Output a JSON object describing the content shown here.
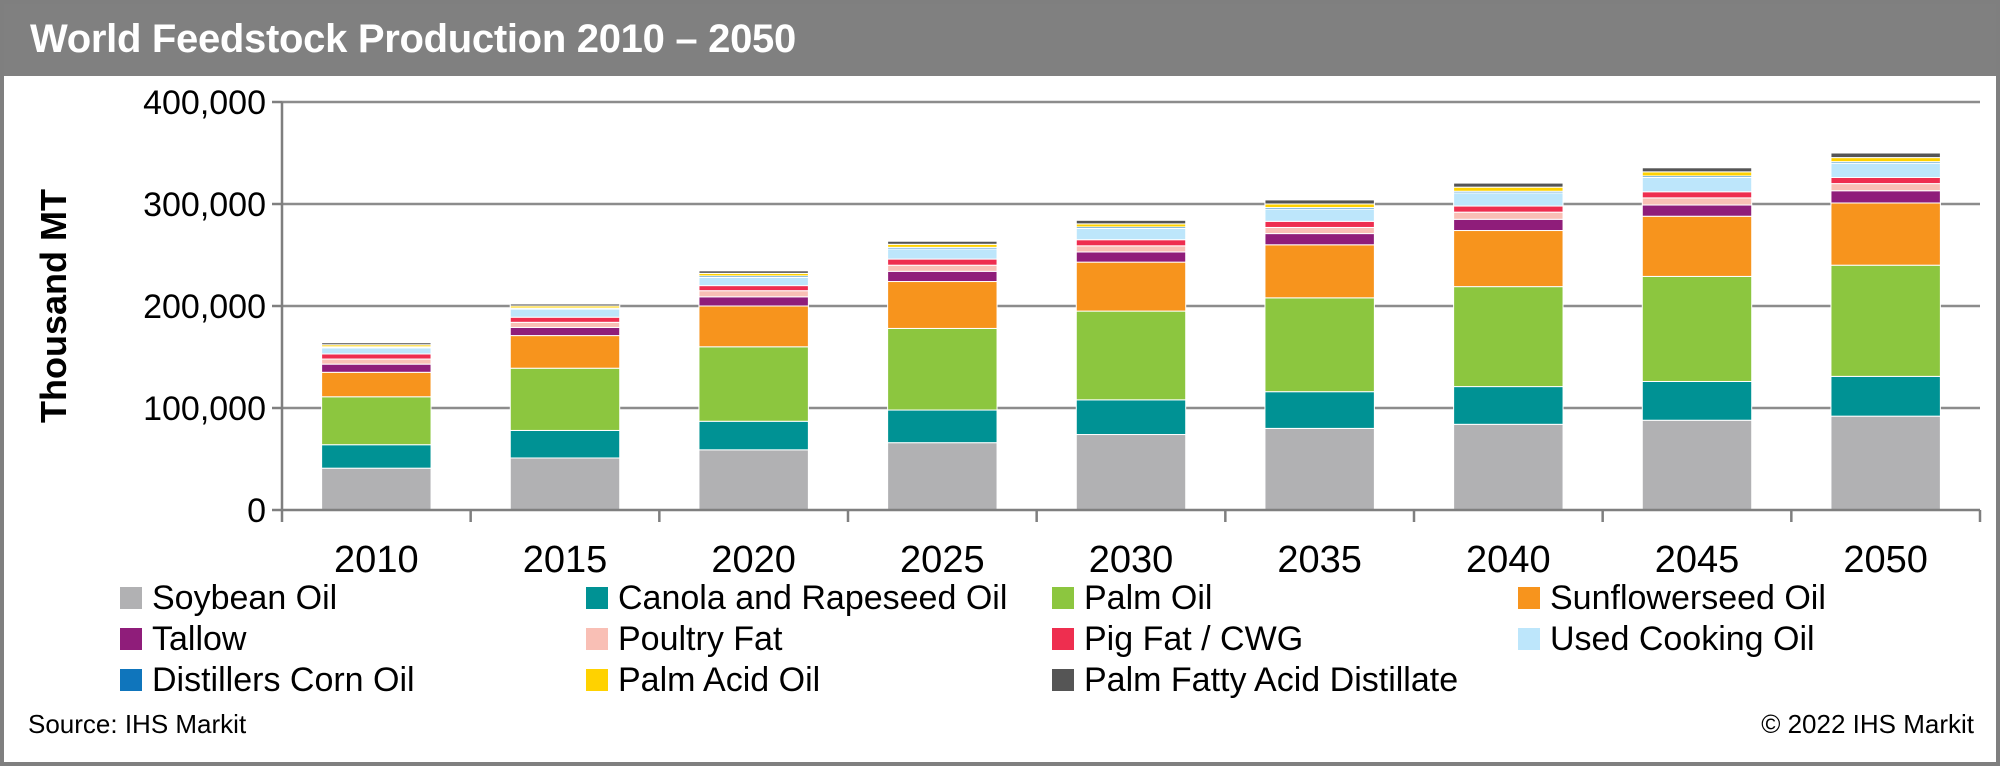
{
  "header": {
    "title": "World Feedstock Production 2010 – 2050"
  },
  "footer": {
    "source": "Source: IHS Markit",
    "copyright": "© 2022 IHS Markit"
  },
  "chart_data": {
    "type": "bar",
    "stacked": true,
    "title": "World Feedstock Production 2010 – 2050",
    "xlabel": "",
    "ylabel": "Thousand MT",
    "ylim": [
      0,
      400000
    ],
    "yticks": [
      0,
      100000,
      200000,
      300000,
      400000
    ],
    "ytick_labels": [
      "0",
      "100,000",
      "200,000",
      "300,000",
      "400,000"
    ],
    "grid": true,
    "legend_position": "bottom",
    "categories": [
      "2010",
      "2015",
      "2020",
      "2025",
      "2030",
      "2035",
      "2040",
      "2045",
      "2050"
    ],
    "series": [
      {
        "name": "Soybean Oil",
        "color": "#b1b1b3",
        "values": [
          41000,
          51000,
          59000,
          66000,
          74000,
          80000,
          84000,
          88000,
          92000
        ]
      },
      {
        "name": "Canola and Rapeseed Oil",
        "color": "#009294",
        "values": [
          23000,
          27000,
          28000,
          32000,
          34000,
          36000,
          37000,
          38000,
          39000
        ]
      },
      {
        "name": "Palm Oil",
        "color": "#8cc63f",
        "values": [
          47000,
          61000,
          73000,
          80000,
          87000,
          92000,
          98000,
          103000,
          109000
        ]
      },
      {
        "name": "Sunflowerseed Oil",
        "color": "#f7941d",
        "values": [
          24000,
          32000,
          40000,
          46000,
          48000,
          52000,
          55000,
          59000,
          61000
        ]
      },
      {
        "name": "Tallow",
        "color": "#8f1d7a",
        "values": [
          8000,
          8000,
          9000,
          10000,
          10000,
          11000,
          11000,
          11000,
          12000
        ]
      },
      {
        "name": "Poultry Fat",
        "color": "#f9bfb5",
        "values": [
          5000,
          5000,
          6000,
          6000,
          6000,
          6000,
          7000,
          7000,
          7000
        ]
      },
      {
        "name": "Pig Fat / CWG",
        "color": "#ee2e4f",
        "values": [
          5000,
          5000,
          5000,
          6000,
          6000,
          6000,
          6000,
          6000,
          6000
        ]
      },
      {
        "name": "Used Cooking Oil",
        "color": "#bde6fb",
        "values": [
          6000,
          8000,
          8000,
          10000,
          11000,
          12000,
          13000,
          14000,
          14000
        ]
      },
      {
        "name": "Distillers Corn Oil",
        "color": "#0f75bc",
        "values": [
          1000,
          1000,
          1500,
          1500,
          1500,
          1500,
          1500,
          1500,
          1500
        ]
      },
      {
        "name": "Palm Acid Oil",
        "color": "#ffd200",
        "values": [
          2000,
          2000,
          2500,
          3000,
          3000,
          3500,
          4000,
          4000,
          4000
        ]
      },
      {
        "name": "Palm Fatty Acid Distillate",
        "color": "#555555",
        "values": [
          2000,
          2000,
          2500,
          3000,
          3500,
          4000,
          4000,
          4000,
          4500
        ]
      }
    ]
  }
}
